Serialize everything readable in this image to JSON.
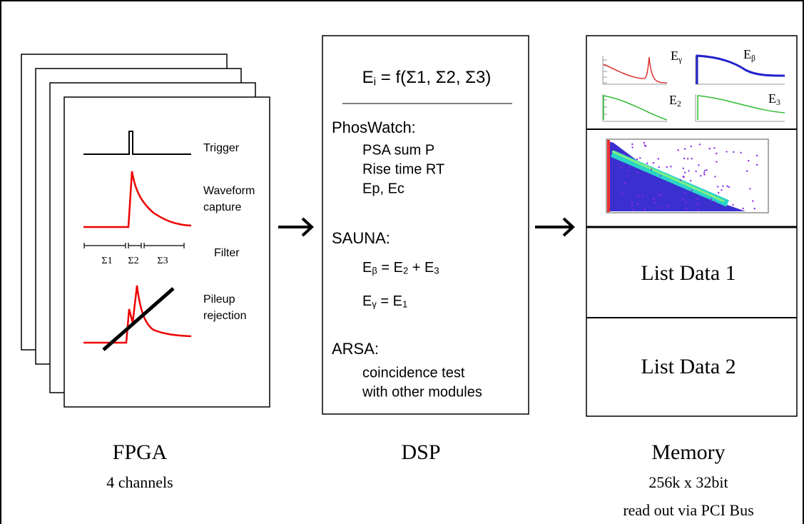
{
  "fpga": {
    "labels": {
      "trigger": "Trigger",
      "waveform": [
        "Waveform",
        "capture"
      ],
      "filter": "Filter",
      "sigmas": [
        "Σ1",
        "Σ2",
        "Σ3"
      ],
      "pileup": [
        "Pileup",
        "rejection"
      ]
    },
    "title": "FPGA",
    "subtitle": "4 channels"
  },
  "dsp": {
    "formula": [
      "E",
      "i",
      " = f(Σ1, Σ2, Σ3)"
    ],
    "phoswatch": {
      "heading": "PhosWatch:",
      "items": [
        "PSA sum P",
        "Rise time RT",
        "Ep, Ec"
      ]
    },
    "sauna": {
      "heading": "SAUNA:",
      "lines": [
        [
          "E",
          "β",
          " = E",
          "2",
          " + E",
          "3"
        ],
        [
          "E",
          "γ",
          " = E",
          "1"
        ]
      ]
    },
    "arsa": {
      "heading": "ARSA:",
      "items": [
        "coincidence test",
        "with other modules"
      ]
    },
    "title": "DSP"
  },
  "memory": {
    "plots": [
      [
        "E",
        "γ"
      ],
      [
        "E",
        "β"
      ],
      [
        "E",
        "2"
      ],
      [
        "E",
        "3"
      ]
    ],
    "list_data": [
      "List Data 1",
      "List Data 2"
    ],
    "title": "Memory",
    "details": [
      "256k x 32bit",
      "read out via PCI Bus"
    ]
  }
}
